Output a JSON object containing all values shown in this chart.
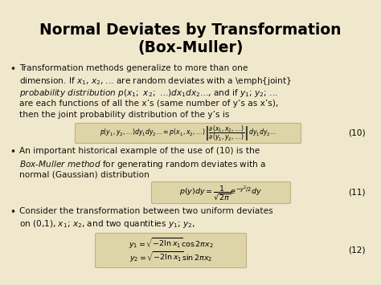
{
  "title_line1": "Normal Deviates by Transformation",
  "title_line2": "(Box-Muller)",
  "bg_color": "#f0e8cc",
  "title_color": "#000000",
  "eq10_num": "(10)",
  "eq11_num": "(11)",
  "eq12_num": "(12)",
  "eq_box_color": "#ddd4a8",
  "eq_box_edge": "#c0b080",
  "bullet_color": "#222222",
  "text_color": "#111111"
}
